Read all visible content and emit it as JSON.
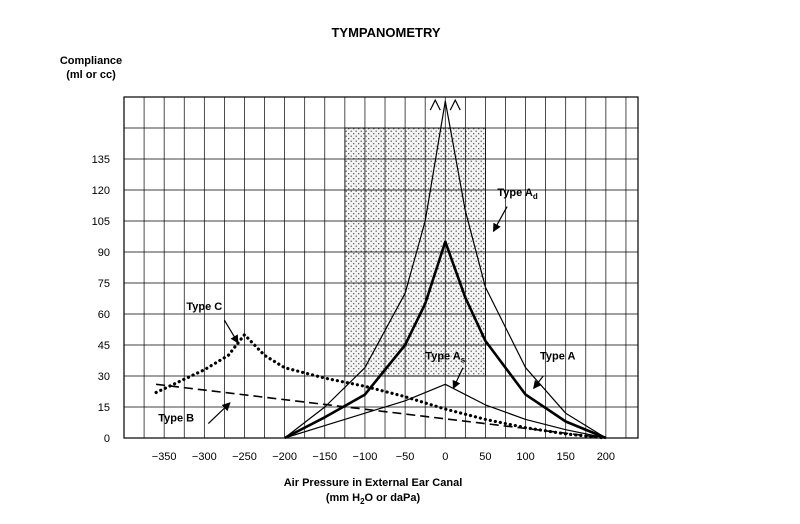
{
  "chart_data": {
    "type": "line",
    "title": "TYMPANOMETRY",
    "ylabel_line1": "Compliance",
    "ylabel_line2": "(ml or cc)",
    "xlabel_line1": "Air Pressure in External Ear Canal",
    "xlabel_line2_pre": "(mm H",
    "xlabel_line2_sub": "2",
    "xlabel_line2_post": "O or daPa)",
    "x_ticks": [
      -350,
      -300,
      -250,
      -200,
      -150,
      -100,
      -50,
      0,
      50,
      100,
      150,
      200
    ],
    "x_tick_labels": [
      "−350",
      "−300",
      "−250",
      "−200",
      "−150",
      "−100",
      "−50",
      "0",
      "50",
      "100",
      "150",
      "200"
    ],
    "y_ticks": [
      0,
      15,
      30,
      45,
      60,
      75,
      90,
      105,
      120,
      135
    ],
    "y_tick_labels": [
      "0",
      "15",
      "30",
      "45",
      "60",
      "75",
      "90",
      "105",
      "120",
      "135"
    ],
    "xlim": [
      -400,
      240
    ],
    "ylim": [
      0,
      165
    ],
    "grid": true,
    "normal_region": {
      "x": [
        -125,
        50
      ],
      "y": [
        30,
        150
      ]
    },
    "series": [
      {
        "name": "Type A",
        "style": "thick",
        "x": [
          -200,
          -150,
          -100,
          -50,
          -25,
          0,
          25,
          50,
          100,
          150,
          200
        ],
        "y": [
          0,
          10,
          21,
          45,
          65,
          95,
          68,
          47,
          21,
          8,
          0
        ]
      },
      {
        "name": "Type Ad",
        "style": "thin",
        "x": [
          -200,
          -150,
          -100,
          -50,
          -25,
          0,
          25,
          50,
          100,
          150,
          200
        ],
        "y": [
          0,
          15,
          34,
          70,
          105,
          163,
          110,
          73,
          34,
          12,
          0
        ]
      },
      {
        "name": "Type As",
        "style": "thin",
        "x": [
          -200,
          -150,
          -100,
          -50,
          0,
          50,
          100,
          150,
          200
        ],
        "y": [
          0,
          6,
          12,
          18,
          26,
          16,
          9,
          4,
          0
        ]
      },
      {
        "name": "Type C",
        "style": "dotted",
        "x": [
          -360,
          -300,
          -270,
          -250,
          -225,
          -200,
          -150,
          -100,
          -50,
          0,
          50,
          100,
          150,
          200
        ],
        "y": [
          22,
          33,
          40,
          50,
          40,
          34,
          29,
          25,
          20,
          14,
          9,
          5,
          2,
          0
        ]
      },
      {
        "name": "Type B",
        "style": "dashed",
        "x": [
          -360,
          200
        ],
        "y": [
          26,
          0
        ]
      }
    ],
    "annotations": [
      {
        "label_main": "Type A",
        "label_sub": "d",
        "text_x": 90,
        "text_y": 117,
        "arrow_from": [
          77,
          112
        ],
        "arrow_to": [
          60,
          100
        ]
      },
      {
        "label_main": "Type A",
        "label_sub": "",
        "text_x": 140,
        "text_y": 38,
        "arrow_from": [
          122,
          30
        ],
        "arrow_to": [
          110,
          24
        ]
      },
      {
        "label_main": "Type A",
        "label_sub": "s",
        "text_x": 0,
        "text_y": 38,
        "arrow_from": [
          22,
          34
        ],
        "arrow_to": [
          10,
          24
        ]
      },
      {
        "label_main": "Type C",
        "label_sub": "",
        "text_x": -300,
        "text_y": 62,
        "arrow_from": [
          -275,
          57
        ],
        "arrow_to": [
          -258,
          46
        ]
      },
      {
        "label_main": "Type B",
        "label_sub": "",
        "text_x": -335,
        "text_y": 8,
        "arrow_from": [
          -295,
          7
        ],
        "arrow_to": [
          -268,
          17
        ]
      }
    ]
  }
}
